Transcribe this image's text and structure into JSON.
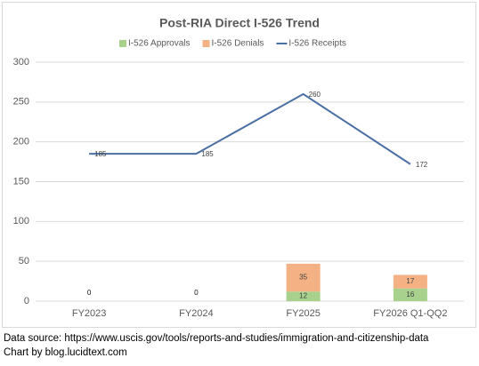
{
  "chart_data": {
    "type": "combo",
    "title": "Post-RIA Direct I-526 Trend",
    "categories": [
      "FY2023",
      "FY2024",
      "FY2025",
      "FY2026 Q1-QQ2"
    ],
    "series": [
      {
        "name": "I-526 Approvals",
        "type": "bar",
        "color": "#a9d18e",
        "values": [
          0,
          0,
          12,
          16
        ]
      },
      {
        "name": "I-526 Denials",
        "type": "bar",
        "color": "#f4b183",
        "values": [
          0,
          0,
          35,
          17
        ]
      },
      {
        "name": "I-526 Receipts",
        "type": "line",
        "color": "#4a6fa5",
        "values": [
          185,
          185,
          260,
          172
        ]
      }
    ],
    "ylim": [
      0,
      300
    ],
    "yticks": [
      0,
      50,
      100,
      150,
      200,
      250,
      300
    ],
    "grid": true,
    "legend": "top"
  },
  "footer": [
    "Data source: https://www.uscis.gov/tools/reports-and-studies/immigration-and-citizenship-data",
    "Chart by blog.lucidtext.com"
  ]
}
